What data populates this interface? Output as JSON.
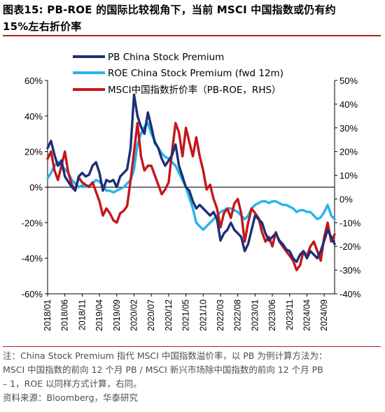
{
  "figure": {
    "title_line1": "图表15:  PB-ROE 的国际比较视角下，当前 MSCI 中国指数或仍有约",
    "title_line2": "15%左右折价率"
  },
  "notes": {
    "line1": "注：China Stock Premium 指代 MSCI 中国指数溢价率，以 PB 为例计算方法为：",
    "line2": "MSCI 中国指数的前向 12 个月 PB / MSCI 新兴市场除中国指数的前向 12 个月 PB",
    "line3": "– 1，ROE 以同样方式计算，右同。",
    "source": "资料来源：Bloomberg，华泰研究"
  },
  "colors": {
    "pb": "#1c2f78",
    "roe": "#27b4ea",
    "msci": "#c4161c",
    "axis": "#000000",
    "rule": "#b0211b"
  },
  "chart_data": {
    "type": "line",
    "legend_position": "top-left",
    "grid": false,
    "x_tick_labels": [
      "2018/01",
      "2018/06",
      "2018/11",
      "2019/04",
      "2019/09",
      "2020/02",
      "2020/07",
      "2020/12",
      "2021/05",
      "2021/10",
      "2022/03",
      "2022/08",
      "2023/01",
      "2023/06",
      "2023/11",
      "2024/04",
      "2024/09"
    ],
    "x_range": [
      "2018/01",
      "2024/12"
    ],
    "y_left": {
      "ticks": [
        "60%",
        "40%",
        "20%",
        "0%",
        "-20%",
        "-40%",
        "-60%"
      ],
      "min": -60,
      "max": 60
    },
    "y_right": {
      "ticks": [
        "50%",
        "40%",
        "30%",
        "20%",
        "10%",
        "0%",
        "-10%",
        "-20%",
        "-30%",
        "-40%"
      ],
      "min": -40,
      "max": 50
    },
    "series": [
      {
        "name": "PB China Stock Premium",
        "axis": "left",
        "color": "#1c2f78",
        "points": [
          [
            "2018/01",
            22
          ],
          [
            "2018/02",
            26
          ],
          [
            "2018/03",
            18
          ],
          [
            "2018/04",
            12
          ],
          [
            "2018/05",
            15
          ],
          [
            "2018/06",
            6
          ],
          [
            "2018/07",
            3
          ],
          [
            "2018/08",
            0
          ],
          [
            "2018/09",
            -2
          ],
          [
            "2018/10",
            6
          ],
          [
            "2018/11",
            8
          ],
          [
            "2018/12",
            6
          ],
          [
            "2019/01",
            7
          ],
          [
            "2019/02",
            12
          ],
          [
            "2019/03",
            14
          ],
          [
            "2019/04",
            8
          ],
          [
            "2019/05",
            -2
          ],
          [
            "2019/06",
            4
          ],
          [
            "2019/07",
            3
          ],
          [
            "2019/08",
            4
          ],
          [
            "2019/09",
            0
          ],
          [
            "2019/10",
            6
          ],
          [
            "2019/11",
            8
          ],
          [
            "2019/12",
            10
          ],
          [
            "2020/01",
            22
          ],
          [
            "2020/02",
            52
          ],
          [
            "2020/03",
            40
          ],
          [
            "2020/04",
            34
          ],
          [
            "2020/05",
            30
          ],
          [
            "2020/06",
            42
          ],
          [
            "2020/07",
            34
          ],
          [
            "2020/08",
            25
          ],
          [
            "2020/09",
            22
          ],
          [
            "2020/10",
            16
          ],
          [
            "2020/11",
            12
          ],
          [
            "2020/12",
            15
          ],
          [
            "2021/01",
            18
          ],
          [
            "2021/02",
            24
          ],
          [
            "2021/03",
            12
          ],
          [
            "2021/04",
            6
          ],
          [
            "2021/05",
            0
          ],
          [
            "2021/06",
            -2
          ],
          [
            "2021/07",
            -8
          ],
          [
            "2021/08",
            -12
          ],
          [
            "2021/09",
            -10
          ],
          [
            "2021/10",
            -12
          ],
          [
            "2021/11",
            -14
          ],
          [
            "2021/12",
            -16
          ],
          [
            "2022/01",
            -14
          ],
          [
            "2022/02",
            -18
          ],
          [
            "2022/03",
            -30
          ],
          [
            "2022/04",
            -26
          ],
          [
            "2022/05",
            -24
          ],
          [
            "2022/06",
            -20
          ],
          [
            "2022/07",
            -24
          ],
          [
            "2022/08",
            -26
          ],
          [
            "2022/09",
            -28
          ],
          [
            "2022/10",
            -36
          ],
          [
            "2022/11",
            -32
          ],
          [
            "2022/12",
            -24
          ],
          [
            "2023/01",
            -16
          ],
          [
            "2023/02",
            -18
          ],
          [
            "2023/03",
            -20
          ],
          [
            "2023/04",
            -26
          ],
          [
            "2023/05",
            -30
          ],
          [
            "2023/06",
            -28
          ],
          [
            "2023/07",
            -26
          ],
          [
            "2023/08",
            -30
          ],
          [
            "2023/09",
            -32
          ],
          [
            "2023/10",
            -35
          ],
          [
            "2023/11",
            -36
          ],
          [
            "2023/12",
            -40
          ],
          [
            "2024/01",
            -42
          ],
          [
            "2024/02",
            -38
          ],
          [
            "2024/03",
            -36
          ],
          [
            "2024/04",
            -40
          ],
          [
            "2024/05",
            -36
          ],
          [
            "2024/06",
            -38
          ],
          [
            "2024/07",
            -40
          ],
          [
            "2024/08",
            -36
          ],
          [
            "2024/09",
            -30
          ],
          [
            "2024/10",
            -24
          ],
          [
            "2024/11",
            -28
          ],
          [
            "2024/12",
            -32
          ]
        ]
      },
      {
        "name": "ROE China Stock Premium (fwd 12m)",
        "axis": "left",
        "color": "#27b4ea",
        "points": [
          [
            "2018/01",
            5
          ],
          [
            "2018/02",
            8
          ],
          [
            "2018/03",
            12
          ],
          [
            "2018/04",
            14
          ],
          [
            "2018/05",
            12
          ],
          [
            "2018/06",
            10
          ],
          [
            "2018/07",
            8
          ],
          [
            "2018/08",
            4
          ],
          [
            "2018/09",
            2
          ],
          [
            "2018/10",
            0
          ],
          [
            "2018/11",
            1
          ],
          [
            "2018/12",
            0
          ],
          [
            "2019/01",
            1
          ],
          [
            "2019/02",
            2
          ],
          [
            "2019/03",
            4
          ],
          [
            "2019/04",
            3
          ],
          [
            "2019/05",
            1
          ],
          [
            "2019/06",
            -2
          ],
          [
            "2019/07",
            -2
          ],
          [
            "2019/08",
            -3
          ],
          [
            "2019/09",
            -2
          ],
          [
            "2019/10",
            -1
          ],
          [
            "2019/11",
            0
          ],
          [
            "2019/12",
            2
          ],
          [
            "2020/01",
            4
          ],
          [
            "2020/02",
            10
          ],
          [
            "2020/03",
            24
          ],
          [
            "2020/04",
            30
          ],
          [
            "2020/05",
            34
          ],
          [
            "2020/06",
            36
          ],
          [
            "2020/07",
            30
          ],
          [
            "2020/08",
            26
          ],
          [
            "2020/09",
            22
          ],
          [
            "2020/10",
            19
          ],
          [
            "2020/11",
            17
          ],
          [
            "2020/12",
            16
          ],
          [
            "2021/01",
            14
          ],
          [
            "2021/02",
            12
          ],
          [
            "2021/03",
            8
          ],
          [
            "2021/04",
            4
          ],
          [
            "2021/05",
            0
          ],
          [
            "2021/06",
            -6
          ],
          [
            "2021/07",
            -12
          ],
          [
            "2021/08",
            -20
          ],
          [
            "2021/09",
            -22
          ],
          [
            "2021/10",
            -24
          ],
          [
            "2021/11",
            -22
          ],
          [
            "2021/12",
            -20
          ],
          [
            "2022/01",
            -18
          ],
          [
            "2022/02",
            -16
          ],
          [
            "2022/03",
            -14
          ],
          [
            "2022/04",
            -13
          ],
          [
            "2022/05",
            -12
          ],
          [
            "2022/06",
            -12
          ],
          [
            "2022/07",
            -13
          ],
          [
            "2022/08",
            -14
          ],
          [
            "2022/09",
            -16
          ],
          [
            "2022/10",
            -18
          ],
          [
            "2022/11",
            -16
          ],
          [
            "2022/12",
            -12
          ],
          [
            "2023/01",
            -10
          ],
          [
            "2023/02",
            -9
          ],
          [
            "2023/03",
            -8
          ],
          [
            "2023/04",
            -8
          ],
          [
            "2023/05",
            -9
          ],
          [
            "2023/06",
            -8
          ],
          [
            "2023/07",
            -8
          ],
          [
            "2023/08",
            -9
          ],
          [
            "2023/09",
            -10
          ],
          [
            "2023/10",
            -10
          ],
          [
            "2023/11",
            -11
          ],
          [
            "2023/12",
            -12
          ],
          [
            "2024/01",
            -14
          ],
          [
            "2024/02",
            -13
          ],
          [
            "2024/03",
            -13
          ],
          [
            "2024/04",
            -14
          ],
          [
            "2024/05",
            -14
          ],
          [
            "2024/06",
            -16
          ],
          [
            "2024/07",
            -18
          ],
          [
            "2024/08",
            -17
          ],
          [
            "2024/09",
            -14
          ],
          [
            "2024/10",
            -10
          ],
          [
            "2024/11",
            -16
          ],
          [
            "2024/12",
            -18
          ]
        ]
      },
      {
        "name": "MSCI中国指数折价率（PB-ROE，RHS）",
        "axis": "right",
        "color": "#c4161c",
        "points": [
          [
            "2018/01",
            17
          ],
          [
            "2018/02",
            20
          ],
          [
            "2018/03",
            12
          ],
          [
            "2018/04",
            8
          ],
          [
            "2018/05",
            14
          ],
          [
            "2018/06",
            20
          ],
          [
            "2018/07",
            11
          ],
          [
            "2018/08",
            6
          ],
          [
            "2018/09",
            4
          ],
          [
            "2018/10",
            9
          ],
          [
            "2018/11",
            7
          ],
          [
            "2018/12",
            6
          ],
          [
            "2019/01",
            5
          ],
          [
            "2019/02",
            7
          ],
          [
            "2019/03",
            3
          ],
          [
            "2019/04",
            -1
          ],
          [
            "2019/05",
            -7
          ],
          [
            "2019/06",
            -4
          ],
          [
            "2019/07",
            -6
          ],
          [
            "2019/08",
            -9
          ],
          [
            "2019/09",
            -10
          ],
          [
            "2019/10",
            -6
          ],
          [
            "2019/11",
            -5
          ],
          [
            "2019/12",
            -3
          ],
          [
            "2020/01",
            8
          ],
          [
            "2020/02",
            20
          ],
          [
            "2020/03",
            32
          ],
          [
            "2020/04",
            18
          ],
          [
            "2020/05",
            12
          ],
          [
            "2020/06",
            14
          ],
          [
            "2020/07",
            14
          ],
          [
            "2020/08",
            10
          ],
          [
            "2020/09",
            6
          ],
          [
            "2020/10",
            2
          ],
          [
            "2020/11",
            4
          ],
          [
            "2020/12",
            7
          ],
          [
            "2021/01",
            20
          ],
          [
            "2021/02",
            32
          ],
          [
            "2021/03",
            28
          ],
          [
            "2021/04",
            18
          ],
          [
            "2021/05",
            30
          ],
          [
            "2021/06",
            24
          ],
          [
            "2021/07",
            18
          ],
          [
            "2021/08",
            26
          ],
          [
            "2021/09",
            18
          ],
          [
            "2021/10",
            12
          ],
          [
            "2021/11",
            4
          ],
          [
            "2021/12",
            6
          ],
          [
            "2022/01",
            0
          ],
          [
            "2022/02",
            -4
          ],
          [
            "2022/03",
            -12
          ],
          [
            "2022/04",
            -6
          ],
          [
            "2022/05",
            -4
          ],
          [
            "2022/06",
            -8
          ],
          [
            "2022/07",
            -2
          ],
          [
            "2022/08",
            0
          ],
          [
            "2022/09",
            -6
          ],
          [
            "2022/10",
            -18
          ],
          [
            "2022/11",
            -10
          ],
          [
            "2022/12",
            -4
          ],
          [
            "2023/01",
            -6
          ],
          [
            "2023/02",
            -8
          ],
          [
            "2023/03",
            -14
          ],
          [
            "2023/04",
            -18
          ],
          [
            "2023/05",
            -16
          ],
          [
            "2023/06",
            -20
          ],
          [
            "2023/07",
            -14
          ],
          [
            "2023/08",
            -18
          ],
          [
            "2023/09",
            -20
          ],
          [
            "2023/10",
            -22
          ],
          [
            "2023/11",
            -24
          ],
          [
            "2023/12",
            -26
          ],
          [
            "2024/01",
            -30
          ],
          [
            "2024/02",
            -28
          ],
          [
            "2024/03",
            -22
          ],
          [
            "2024/04",
            -24
          ],
          [
            "2024/05",
            -20
          ],
          [
            "2024/06",
            -18
          ],
          [
            "2024/07",
            -22
          ],
          [
            "2024/08",
            -26
          ],
          [
            "2024/09",
            -16
          ],
          [
            "2024/10",
            -10
          ],
          [
            "2024/11",
            -18
          ],
          [
            "2024/12",
            -15
          ]
        ]
      }
    ]
  }
}
